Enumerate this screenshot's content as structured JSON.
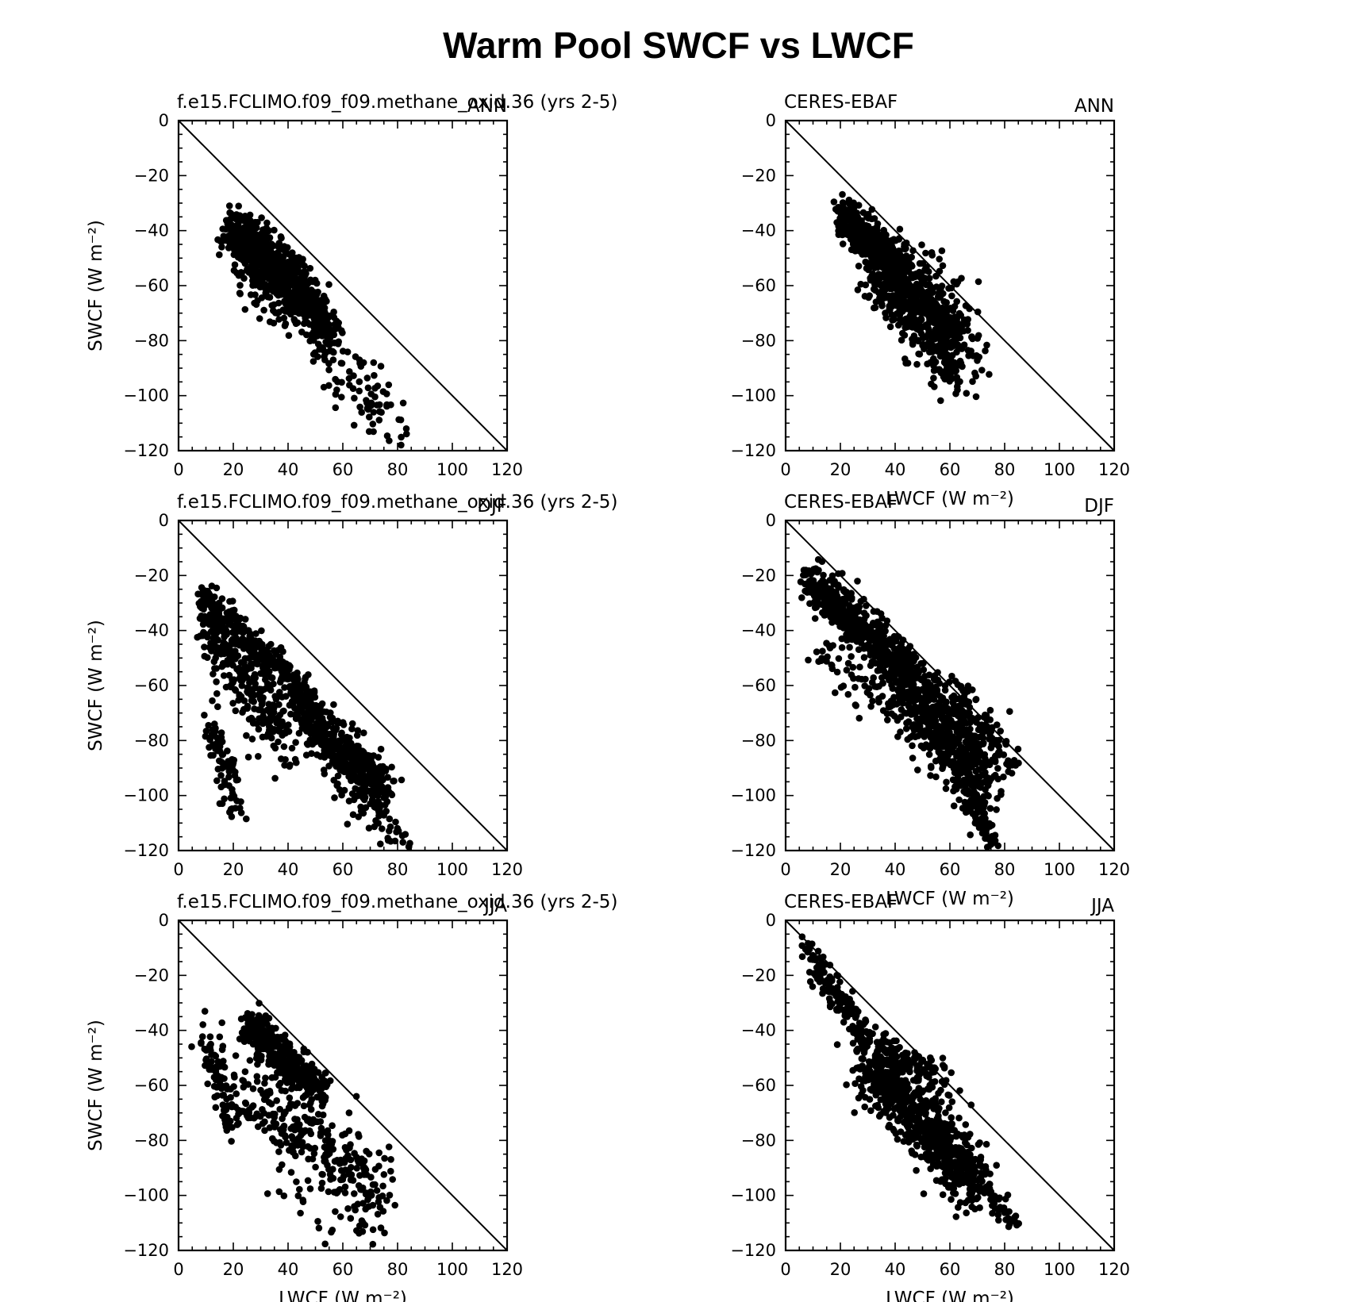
{
  "figure": {
    "title": "Warm Pool SWCF vs LWCF"
  },
  "chart_data": [
    {
      "type": "scatter",
      "left_label": "f.e15.FCLIMO.f09_f09.methane_oxid.36 (yrs 2-5)",
      "right_label": "ANN",
      "xlabel": "",
      "ylabel": "SWCF (W m⁻²)",
      "xlim": [
        0,
        120
      ],
      "ylim": [
        -120,
        0
      ],
      "xticks": [
        0,
        20,
        40,
        60,
        80,
        100,
        120
      ],
      "yticks": [
        0,
        -20,
        -40,
        -60,
        -80,
        -100,
        -120
      ],
      "reference_line": "one-to-one (SWCF = -LWCF)",
      "point_clusters": [
        {
          "x": [
            20,
            45
          ],
          "y": [
            -40,
            -62
          ],
          "spread": 5,
          "count": 700
        },
        {
          "x": [
            45,
            56
          ],
          "y": [
            -62,
            -80
          ],
          "spread": 4.5,
          "count": 200
        },
        {
          "x": [
            24,
            32
          ],
          "y": [
            -42,
            -50
          ],
          "spread": 3,
          "count": 160
        },
        {
          "x": [
            24,
            50
          ],
          "y": [
            -58,
            -75
          ],
          "spread": 5,
          "count": 60
        },
        {
          "x": [
            50,
            80
          ],
          "y": [
            -80,
            -112
          ],
          "spread": 6.5,
          "count": 90
        }
      ]
    },
    {
      "type": "scatter",
      "left_label": "CERES-EBAF",
      "right_label": "ANN",
      "xlabel": "LWCF (W m⁻²)",
      "ylabel": "",
      "xlim": [
        0,
        120
      ],
      "ylim": [
        -120,
        0
      ],
      "xticks": [
        0,
        20,
        40,
        60,
        80,
        100,
        120
      ],
      "yticks": [
        0,
        -20,
        -40,
        -60,
        -80,
        -100,
        -120
      ],
      "reference_line": "one-to-one (SWCF = -LWCF)",
      "point_clusters": [
        {
          "x": [
            21,
            42
          ],
          "y": [
            -35,
            -55
          ],
          "spread": 3.5,
          "count": 500
        },
        {
          "x": [
            35,
            62
          ],
          "y": [
            -52,
            -85
          ],
          "spread": 7,
          "count": 600
        },
        {
          "x": [
            50,
            70
          ],
          "y": [
            -55,
            -85
          ],
          "spread": 6,
          "count": 80
        },
        {
          "x": [
            30,
            45
          ],
          "y": [
            -55,
            -70
          ],
          "spread": 4,
          "count": 40
        },
        {
          "x": [
            60,
            68
          ],
          "y": [
            -88,
            -103
          ],
          "spread": 3,
          "count": 12
        }
      ]
    },
    {
      "type": "scatter",
      "left_label": "f.e15.FCLIMO.f09_f09.methane_oxid.36 (yrs 2-5)",
      "right_label": "DJF",
      "xlabel": "",
      "ylabel": "SWCF (W m⁻²)",
      "xlim": [
        0,
        120
      ],
      "ylim": [
        -120,
        0
      ],
      "xticks": [
        0,
        20,
        40,
        60,
        80,
        100,
        120
      ],
      "yticks": [
        0,
        -20,
        -40,
        -60,
        -80,
        -100,
        -120
      ],
      "reference_line": "one-to-one (SWCF = -LWCF)",
      "point_clusters": [
        {
          "x": [
            8,
            48
          ],
          "y": [
            -27,
            -65
          ],
          "spread": 3,
          "count": 300
        },
        {
          "x": [
            44,
            75
          ],
          "y": [
            -68,
            -100
          ],
          "spread": 5,
          "count": 450
        },
        {
          "x": [
            10,
            40
          ],
          "y": [
            -35,
            -80
          ],
          "spread": 6,
          "count": 300
        },
        {
          "x": [
            12,
            22
          ],
          "y": [
            -70,
            -108
          ],
          "spread": 3.5,
          "count": 80
        },
        {
          "x": [
            62,
            84
          ],
          "y": [
            -100,
            -118
          ],
          "spread": 4,
          "count": 40
        }
      ]
    },
    {
      "type": "scatter",
      "left_label": "CERES-EBAF",
      "right_label": "DJF",
      "xlabel": "LWCF (W m⁻²)",
      "ylabel": "",
      "xlim": [
        0,
        120
      ],
      "ylim": [
        -120,
        0
      ],
      "xticks": [
        0,
        20,
        40,
        60,
        80,
        100,
        120
      ],
      "yticks": [
        0,
        -20,
        -40,
        -60,
        -80,
        -100,
        -120
      ],
      "reference_line": "one-to-one (SWCF = -LWCF)",
      "point_clusters": [
        {
          "x": [
            9,
            45
          ],
          "y": [
            -22,
            -55
          ],
          "spread": 4,
          "count": 500
        },
        {
          "x": [
            40,
            72
          ],
          "y": [
            -55,
            -95
          ],
          "spread": 7,
          "count": 600
        },
        {
          "x": [
            62,
            80
          ],
          "y": [
            -62,
            -88
          ],
          "spread": 5,
          "count": 120
        },
        {
          "x": [
            65,
            76
          ],
          "y": [
            -95,
            -118
          ],
          "spread": 3,
          "count": 90
        },
        {
          "x": [
            12,
            40
          ],
          "y": [
            -45,
            -70
          ],
          "spread": 5,
          "count": 60
        }
      ]
    },
    {
      "type": "scatter",
      "left_label": "f.e15.FCLIMO.f09_f09.methane_oxid.36 (yrs 2-5)",
      "right_label": "JJA",
      "xlabel": "LWCF (W m⁻²)",
      "ylabel": "SWCF (W m⁻²)",
      "xlim": [
        0,
        120
      ],
      "ylim": [
        -120,
        0
      ],
      "xticks": [
        0,
        20,
        40,
        60,
        80,
        100,
        120
      ],
      "yticks": [
        0,
        -20,
        -40,
        -60,
        -80,
        -100,
        -120
      ],
      "reference_line": "one-to-one (SWCF = -LWCF)",
      "point_clusters": [
        {
          "x": [
            25,
            52
          ],
          "y": [
            -37,
            -62
          ],
          "spread": 3.5,
          "count": 400
        },
        {
          "x": [
            10,
            20
          ],
          "y": [
            -42,
            -75
          ],
          "spread": 4,
          "count": 100
        },
        {
          "x": [
            25,
            72
          ],
          "y": [
            -62,
            -100
          ],
          "spread": 8,
          "count": 300
        },
        {
          "x": [
            30,
            78
          ],
          "y": [
            -100,
            -115
          ],
          "spread": 5,
          "count": 25
        }
      ]
    },
    {
      "type": "scatter",
      "left_label": "CERES-EBAF",
      "right_label": "JJA",
      "xlabel": "LWCF (W m⁻²)",
      "ylabel": "",
      "xlim": [
        0,
        120
      ],
      "ylim": [
        -120,
        0
      ],
      "xticks": [
        0,
        20,
        40,
        60,
        80,
        100,
        120
      ],
      "yticks": [
        0,
        -20,
        -40,
        -60,
        -80,
        -100,
        -120
      ],
      "reference_line": "one-to-one (SWCF = -LWCF)",
      "point_clusters": [
        {
          "x": [
            8,
            30
          ],
          "y": [
            -10,
            -45
          ],
          "spread": 3,
          "count": 150
        },
        {
          "x": [
            30,
            68
          ],
          "y": [
            -50,
            -95
          ],
          "spread": 7,
          "count": 700
        },
        {
          "x": [
            65,
            83
          ],
          "y": [
            -90,
            -108
          ],
          "spread": 3,
          "count": 80
        },
        {
          "x": [
            35,
            60
          ],
          "y": [
            -48,
            -58
          ],
          "spread": 4,
          "count": 80
        }
      ]
    }
  ]
}
